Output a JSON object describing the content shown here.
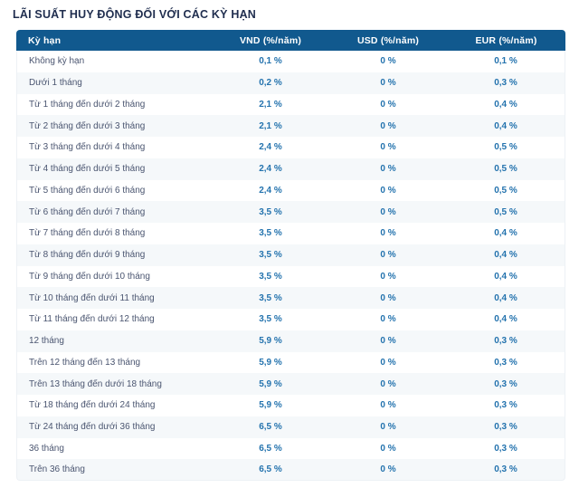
{
  "page": {
    "title": "LÃI SUẤT HUY ĐỘNG ĐỐI VỚI CÁC KỲ HẠN"
  },
  "colors": {
    "header_bg": "#11598e",
    "header_text": "#ffffff",
    "title_text": "#1f2d4e",
    "label_text": "#4a5570",
    "value_text": "#2473ae",
    "row_stripe": "#f5f8fa",
    "table_border": "#edf1f5"
  },
  "table": {
    "columns": [
      {
        "key": "label",
        "label": "Kỳ hạn"
      },
      {
        "key": "vnd",
        "label": "VND (%/năm)"
      },
      {
        "key": "usd",
        "label": "USD (%/năm)"
      },
      {
        "key": "eur",
        "label": "EUR (%/năm)"
      }
    ],
    "rows": [
      {
        "label": "Không kỳ hạn",
        "vnd": "0,1 %",
        "usd": "0 %",
        "eur": "0,1 %"
      },
      {
        "label": "Dưới 1 tháng",
        "vnd": "0,2 %",
        "usd": "0 %",
        "eur": "0,3 %"
      },
      {
        "label": "Từ 1 tháng đến dưới 2 tháng",
        "vnd": "2,1 %",
        "usd": "0 %",
        "eur": "0,4 %"
      },
      {
        "label": "Từ 2 tháng đến dưới 3 tháng",
        "vnd": "2,1 %",
        "usd": "0 %",
        "eur": "0,4 %"
      },
      {
        "label": "Từ 3 tháng đến dưới 4 tháng",
        "vnd": "2,4 %",
        "usd": "0 %",
        "eur": "0,5 %"
      },
      {
        "label": "Từ 4 tháng đến dưới 5 tháng",
        "vnd": "2,4 %",
        "usd": "0 %",
        "eur": "0,5 %"
      },
      {
        "label": "Từ 5 tháng đến dưới 6 tháng",
        "vnd": "2,4 %",
        "usd": "0 %",
        "eur": "0,5 %"
      },
      {
        "label": "Từ 6 tháng đến dưới 7 tháng",
        "vnd": "3,5 %",
        "usd": "0 %",
        "eur": "0,5 %"
      },
      {
        "label": "Từ 7 tháng đến dưới 8 tháng",
        "vnd": "3,5 %",
        "usd": "0 %",
        "eur": "0,4 %"
      },
      {
        "label": "Từ 8 tháng đến dưới 9 tháng",
        "vnd": "3,5 %",
        "usd": "0 %",
        "eur": "0,4 %"
      },
      {
        "label": "Từ 9 tháng đến dưới 10 tháng",
        "vnd": "3,5 %",
        "usd": "0 %",
        "eur": "0,4 %"
      },
      {
        "label": "Từ 10 tháng đến dưới 11 tháng",
        "vnd": "3,5 %",
        "usd": "0 %",
        "eur": "0,4 %"
      },
      {
        "label": "Từ 11 tháng đến dưới 12 tháng",
        "vnd": "3,5 %",
        "usd": "0 %",
        "eur": "0,4 %"
      },
      {
        "label": "12 tháng",
        "vnd": "5,9 %",
        "usd": "0 %",
        "eur": "0,3 %"
      },
      {
        "label": "Trên 12 tháng đến 13 tháng",
        "vnd": "5,9 %",
        "usd": "0 %",
        "eur": "0,3 %"
      },
      {
        "label": "Trên 13 tháng đến dưới 18 tháng",
        "vnd": "5,9 %",
        "usd": "0 %",
        "eur": "0,3 %"
      },
      {
        "label": "Từ 18 tháng đến dưới 24 tháng",
        "vnd": "5,9 %",
        "usd": "0 %",
        "eur": "0,3 %"
      },
      {
        "label": "Từ 24 tháng đến dưới 36 tháng",
        "vnd": "6,5 %",
        "usd": "0 %",
        "eur": "0,3 %"
      },
      {
        "label": "36 tháng",
        "vnd": "6,5 %",
        "usd": "0 %",
        "eur": "0,3 %"
      },
      {
        "label": "Trên 36 tháng",
        "vnd": "6,5 %",
        "usd": "0 %",
        "eur": "0,3 %"
      }
    ]
  }
}
